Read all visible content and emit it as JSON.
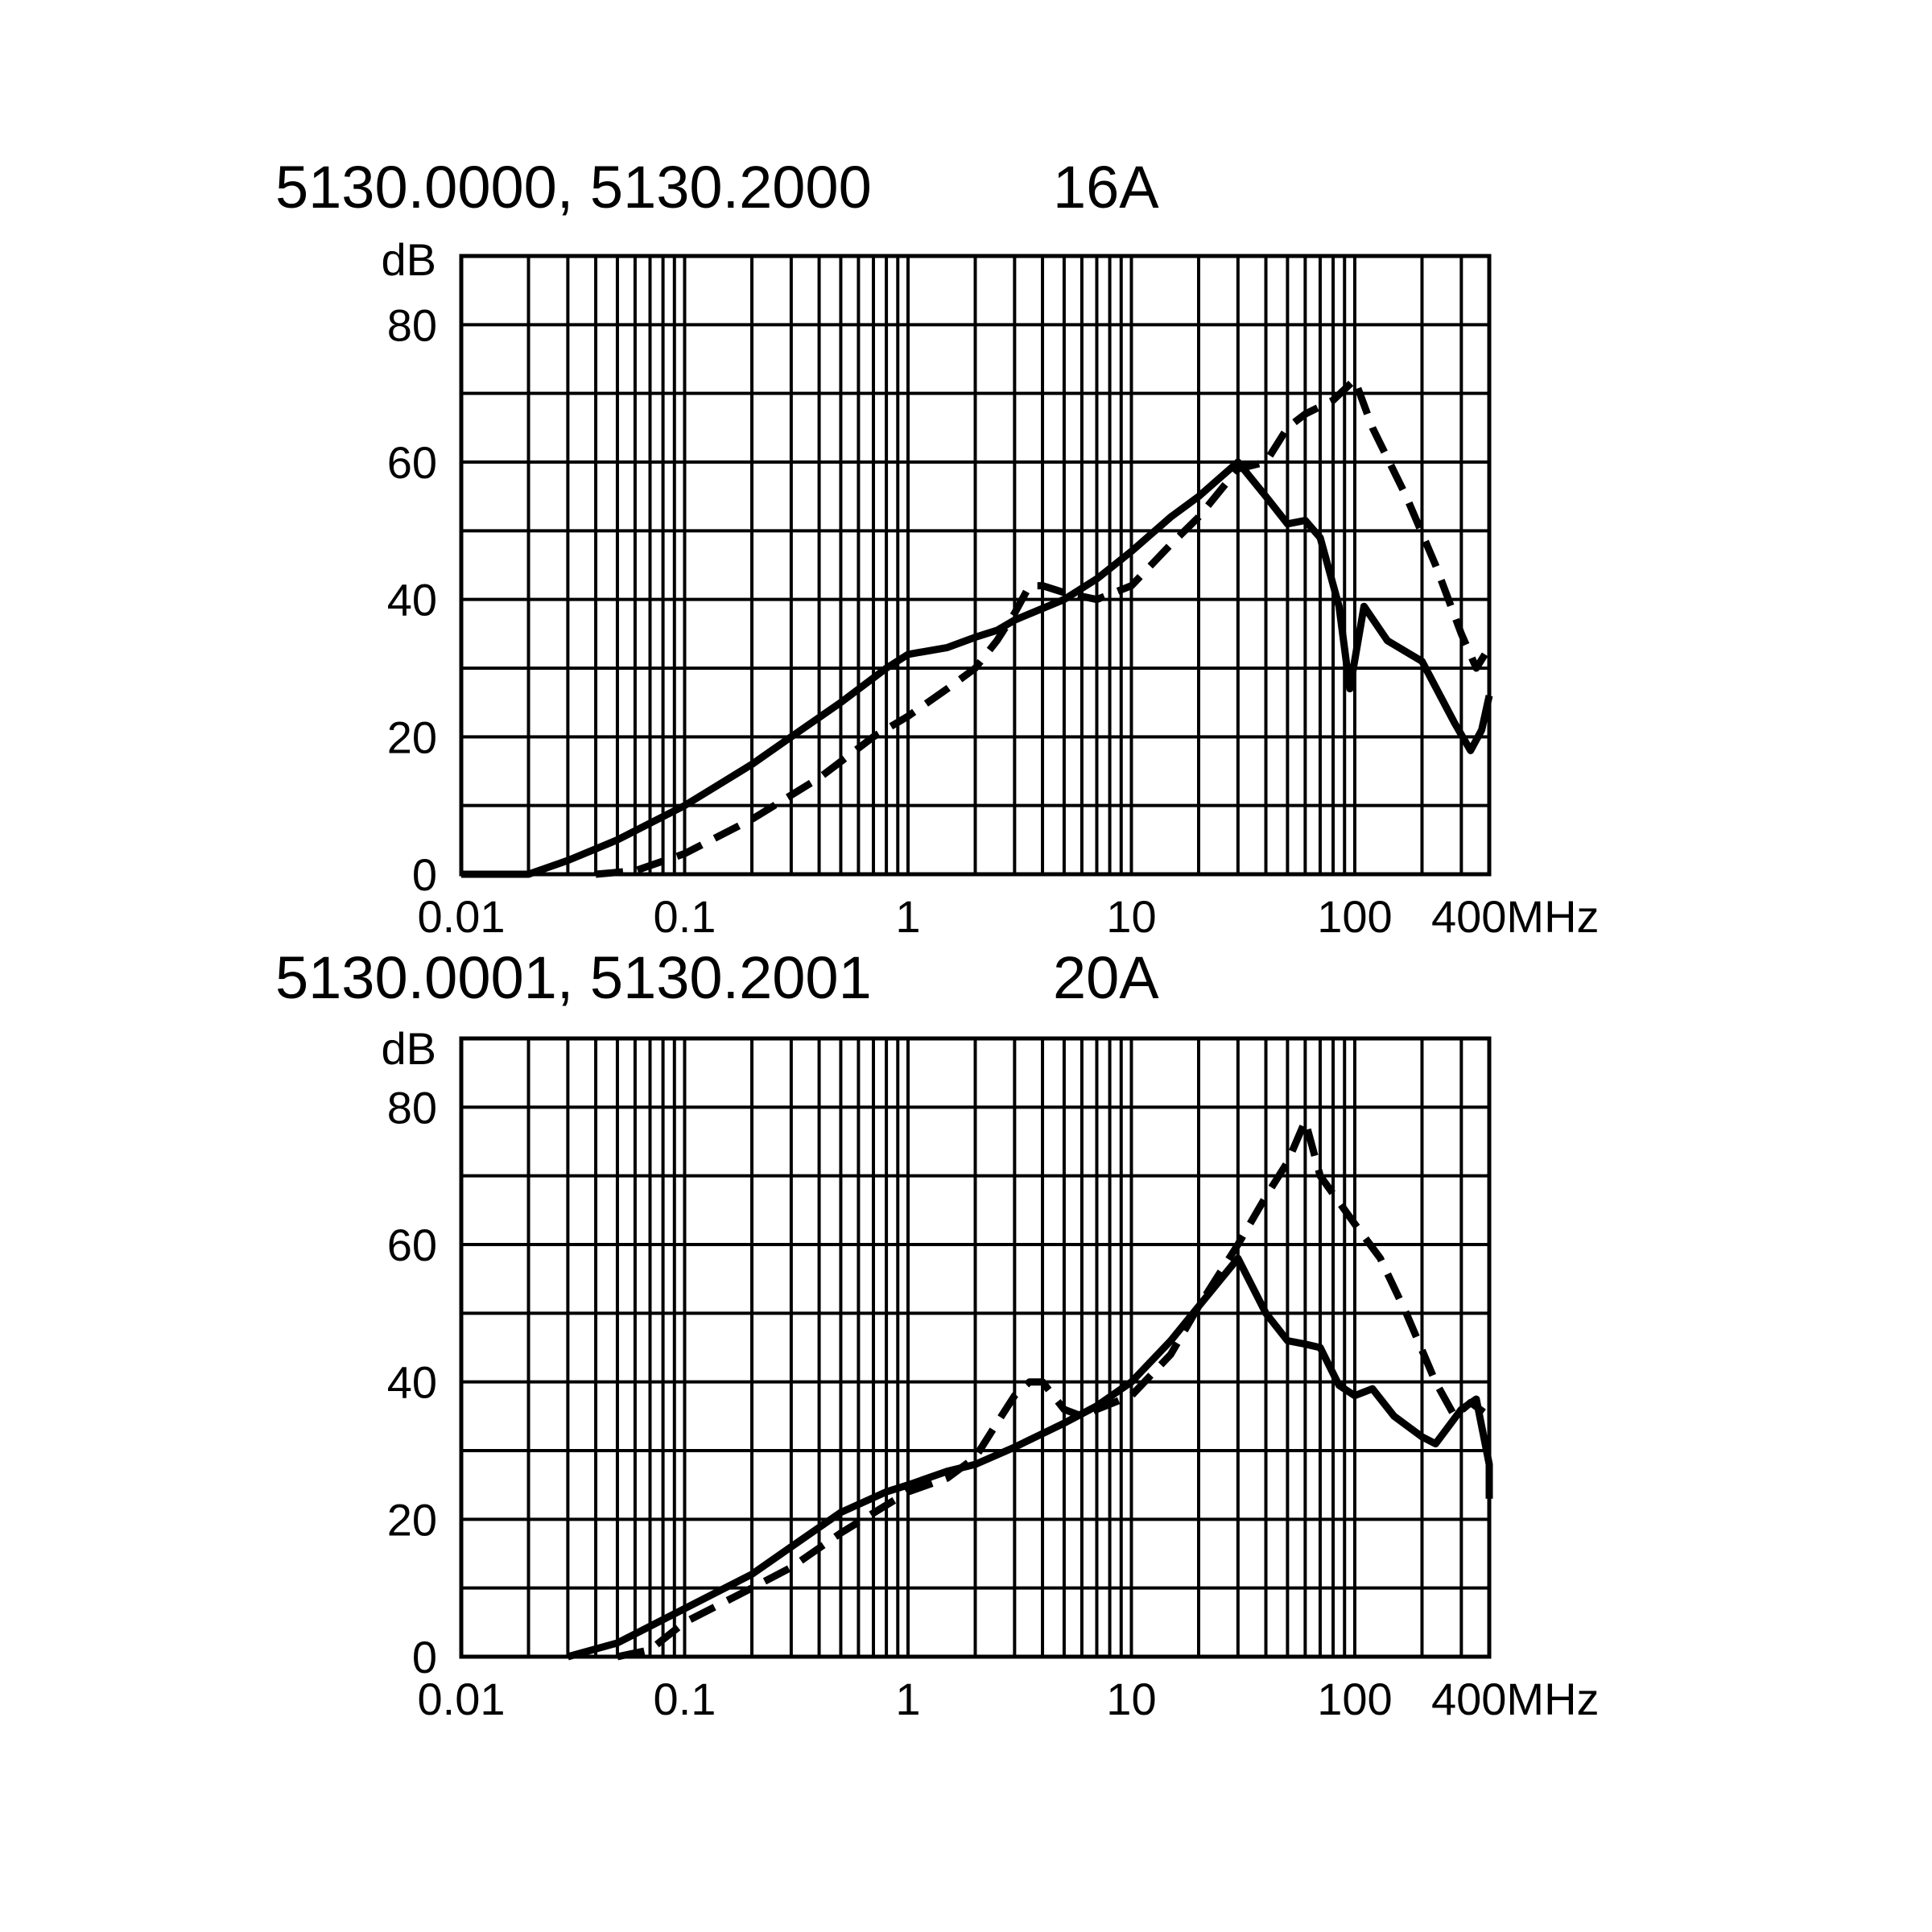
{
  "chart_data": [
    {
      "type": "line",
      "title": "5130.0000, 5130.2000",
      "current": "16A",
      "ylabel": "dB",
      "xunit": "MHz",
      "xscale": "log",
      "xlim": [
        0.01,
        400
      ],
      "ylim": [
        0,
        90
      ],
      "grid": true,
      "x_ticks": [
        0.01,
        0.1,
        1,
        10,
        100,
        400
      ],
      "x_tick_labels": [
        "0.01",
        "0.1",
        "1",
        "10",
        "100",
        "400MHz"
      ],
      "y_ticks": [
        0,
        20,
        40,
        60,
        80
      ],
      "y_tick_labels": [
        "0",
        "20",
        "40",
        "60",
        "80"
      ],
      "series": [
        {
          "style": "solid",
          "points": [
            [
              0.01,
              0
            ],
            [
              0.02,
              0
            ],
            [
              0.03,
              2
            ],
            [
              0.05,
              5
            ],
            [
              0.1,
              10
            ],
            [
              0.2,
              16
            ],
            [
              0.3,
              20
            ],
            [
              0.5,
              25
            ],
            [
              0.8,
              30
            ],
            [
              1,
              32
            ],
            [
              1.5,
              33
            ],
            [
              2,
              34.5
            ],
            [
              2.5,
              35.5
            ],
            [
              3,
              37
            ],
            [
              5,
              40
            ],
            [
              7,
              43
            ],
            [
              10,
              47
            ],
            [
              15,
              52
            ],
            [
              20,
              55
            ],
            [
              30,
              60
            ],
            [
              40,
              55
            ],
            [
              50,
              51
            ],
            [
              60,
              51.5
            ],
            [
              70,
              49
            ],
            [
              85,
              39
            ],
            [
              95,
              27
            ],
            [
              110,
              39
            ],
            [
              140,
              34
            ],
            [
              200,
              31
            ],
            [
              280,
              22
            ],
            [
              330,
              18
            ],
            [
              370,
              21
            ],
            [
              400,
              26
            ]
          ]
        },
        {
          "style": "dashed",
          "points": [
            [
              0.04,
              0
            ],
            [
              0.06,
              0.5
            ],
            [
              0.1,
              3
            ],
            [
              0.2,
              8
            ],
            [
              0.4,
              14
            ],
            [
              0.7,
              20
            ],
            [
              1,
              23
            ],
            [
              1.5,
              27
            ],
            [
              2,
              30
            ],
            [
              2.5,
              34
            ],
            [
              3,
              38
            ],
            [
              3.5,
              42
            ],
            [
              4,
              42
            ],
            [
              5,
              41
            ],
            [
              7,
              40
            ],
            [
              10,
              42
            ],
            [
              15,
              48
            ],
            [
              20,
              52
            ],
            [
              30,
              59
            ],
            [
              40,
              60
            ],
            [
              50,
              65
            ],
            [
              60,
              67
            ],
            [
              80,
              69
            ],
            [
              100,
              72
            ],
            [
              120,
              65
            ],
            [
              170,
              55
            ],
            [
              230,
              45
            ],
            [
              300,
              35
            ],
            [
              350,
              30
            ],
            [
              400,
              33
            ]
          ]
        }
      ]
    },
    {
      "type": "line",
      "title": "5130.0001, 5130.2001",
      "current": "20A",
      "ylabel": "dB",
      "xunit": "MHz",
      "xscale": "log",
      "xlim": [
        0.01,
        400
      ],
      "ylim": [
        0,
        90
      ],
      "grid": true,
      "x_ticks": [
        0.01,
        0.1,
        1,
        10,
        100,
        400
      ],
      "x_tick_labels": [
        "0.01",
        "0.1",
        "1",
        "10",
        "100",
        "400MHz"
      ],
      "y_ticks": [
        0,
        20,
        40,
        60,
        80
      ],
      "y_tick_labels": [
        "0",
        "20",
        "40",
        "60",
        "80"
      ],
      "series": [
        {
          "style": "solid",
          "points": [
            [
              0.03,
              0
            ],
            [
              0.05,
              2
            ],
            [
              0.1,
              7
            ],
            [
              0.2,
              12
            ],
            [
              0.3,
              16
            ],
            [
              0.5,
              21
            ],
            [
              0.8,
              24
            ],
            [
              1,
              25
            ],
            [
              1.5,
              27
            ],
            [
              2,
              28
            ],
            [
              3,
              30.5
            ],
            [
              5,
              34
            ],
            [
              7,
              36.5
            ],
            [
              10,
              40
            ],
            [
              15,
              46
            ],
            [
              20,
              51
            ],
            [
              30,
              58
            ],
            [
              40,
              50
            ],
            [
              50,
              46
            ],
            [
              60,
              45.5
            ],
            [
              70,
              45
            ],
            [
              85,
              39.5
            ],
            [
              100,
              38
            ],
            [
              120,
              39
            ],
            [
              150,
              35
            ],
            [
              200,
              32
            ],
            [
              230,
              31
            ],
            [
              300,
              36
            ],
            [
              350,
              37.5
            ],
            [
              400,
              28
            ],
            [
              420,
              23
            ]
          ]
        },
        {
          "style": "dashed",
          "points": [
            [
              0.05,
              0
            ],
            [
              0.07,
              1
            ],
            [
              0.1,
              5
            ],
            [
              0.2,
              10
            ],
            [
              0.3,
              13
            ],
            [
              0.5,
              18
            ],
            [
              1,
              24
            ],
            [
              1.5,
              26
            ],
            [
              2,
              29
            ],
            [
              2.5,
              34
            ],
            [
              3,
              38
            ],
            [
              3.5,
              40
            ],
            [
              4,
              40
            ],
            [
              5,
              36
            ],
            [
              6,
              35
            ],
            [
              7,
              36
            ],
            [
              10,
              38
            ],
            [
              15,
              44
            ],
            [
              20,
              51
            ],
            [
              30,
              60
            ],
            [
              40,
              67
            ],
            [
              50,
              72
            ],
            [
              60,
              78
            ],
            [
              70,
              70
            ],
            [
              100,
              63
            ],
            [
              130,
              58
            ],
            [
              170,
              50
            ],
            [
              230,
              40
            ],
            [
              280,
              35
            ],
            [
              330,
              37
            ],
            [
              400,
              35
            ]
          ]
        }
      ]
    }
  ]
}
